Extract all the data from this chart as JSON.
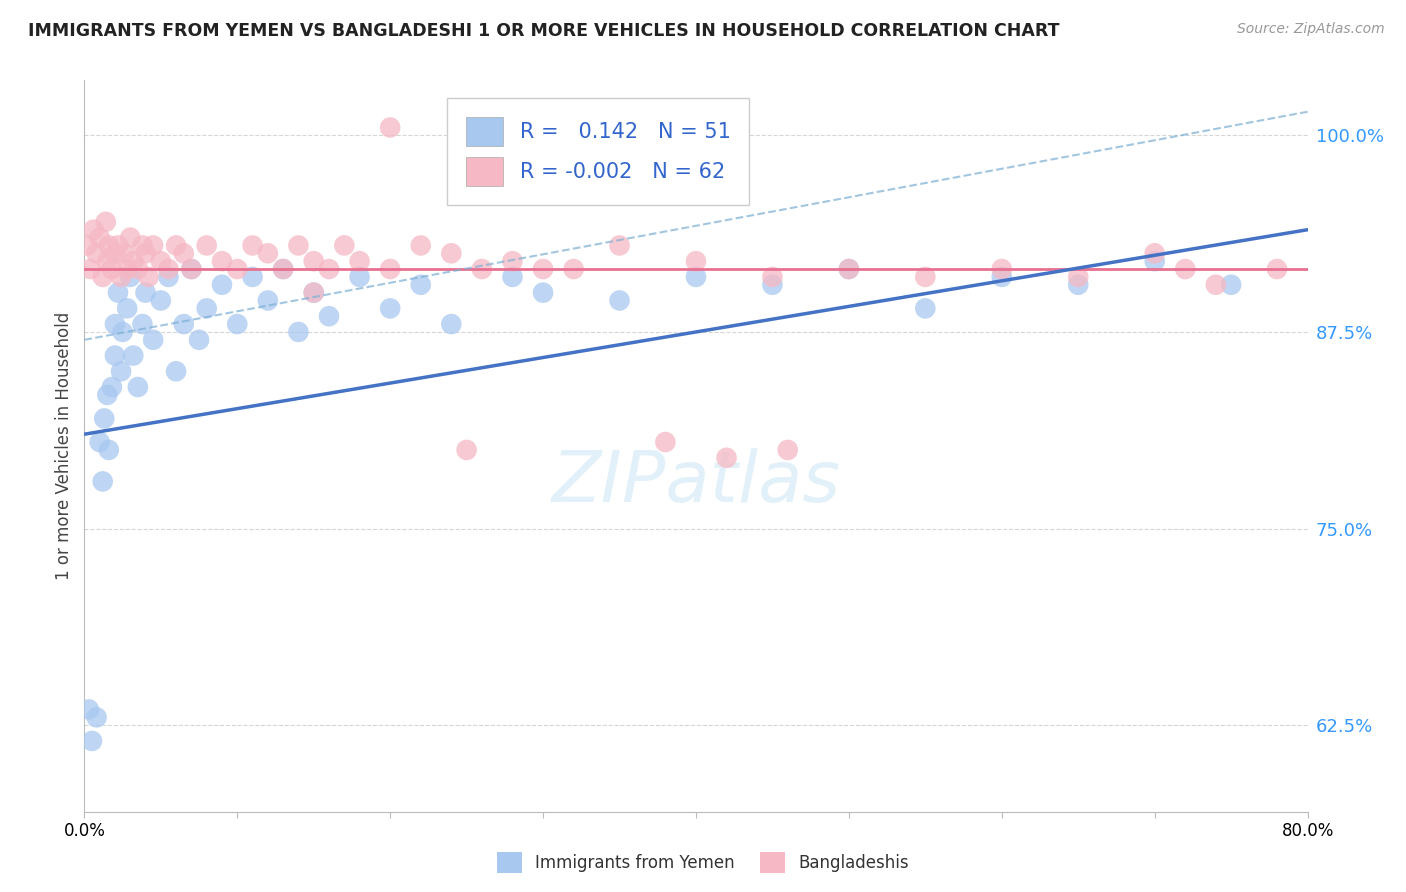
{
  "title": "IMMIGRANTS FROM YEMEN VS BANGLADESHI 1 OR MORE VEHICLES IN HOUSEHOLD CORRELATION CHART",
  "source": "Source: ZipAtlas.com",
  "ylabel": "1 or more Vehicles in Household",
  "legend_labels": [
    "Immigrants from Yemen",
    "Bangladeshis"
  ],
  "r_yemen": 0.142,
  "n_yemen": 51,
  "r_bangladeshi": -0.002,
  "n_bangladeshi": 62,
  "blue_color": "#A8C8F0",
  "pink_color": "#F5B8C4",
  "line_blue_solid": "#4472C4",
  "line_blue_dash": "#7BAFD4",
  "line_pink": "#E87090",
  "yticks": [
    62.5,
    75.0,
    87.5,
    100.0
  ],
  "xmin": 0.0,
  "xmax": 80.0,
  "ymin": 57.0,
  "ymax": 103.5,
  "background_color": "#FFFFFF",
  "grid_color": "#CCCCCC",
  "yemen_x": [
    0.3,
    0.5,
    0.8,
    1.0,
    1.2,
    1.3,
    1.5,
    1.6,
    1.8,
    2.0,
    2.0,
    2.2,
    2.4,
    2.5,
    2.8,
    3.0,
    3.2,
    3.5,
    3.8,
    4.0,
    4.5,
    5.0,
    5.5,
    6.0,
    6.5,
    7.0,
    7.5,
    8.0,
    9.0,
    10.0,
    11.0,
    12.0,
    13.0,
    14.0,
    15.0,
    16.0,
    18.0,
    20.0,
    22.0,
    24.0,
    28.0,
    30.0,
    35.0,
    40.0,
    45.0,
    50.0,
    55.0,
    60.0,
    65.0,
    70.0,
    75.0
  ],
  "yemen_y": [
    63.5,
    61.5,
    63.0,
    80.5,
    78.0,
    82.0,
    83.5,
    80.0,
    84.0,
    86.0,
    88.0,
    90.0,
    85.0,
    87.5,
    89.0,
    91.0,
    86.0,
    84.0,
    88.0,
    90.0,
    87.0,
    89.5,
    91.0,
    85.0,
    88.0,
    91.5,
    87.0,
    89.0,
    90.5,
    88.0,
    91.0,
    89.5,
    91.5,
    87.5,
    90.0,
    88.5,
    91.0,
    89.0,
    90.5,
    88.0,
    91.0,
    90.0,
    89.5,
    91.0,
    90.5,
    91.5,
    89.0,
    91.0,
    90.5,
    92.0,
    90.5
  ],
  "bangladeshi_x": [
    0.2,
    0.4,
    0.6,
    0.8,
    1.0,
    1.2,
    1.4,
    1.5,
    1.6,
    1.8,
    2.0,
    2.2,
    2.4,
    2.6,
    2.8,
    3.0,
    3.2,
    3.5,
    3.8,
    4.0,
    4.2,
    4.5,
    5.0,
    5.5,
    6.0,
    6.5,
    7.0,
    8.0,
    9.0,
    10.0,
    11.0,
    12.0,
    13.0,
    14.0,
    15.0,
    16.0,
    17.0,
    18.0,
    20.0,
    22.0,
    24.0,
    26.0,
    28.0,
    30.0,
    35.0,
    40.0,
    45.0,
    50.0,
    55.0,
    60.0,
    65.0,
    70.0,
    72.0,
    74.0,
    78.0,
    38.0,
    42.0,
    46.0,
    15.0,
    25.0,
    32.0,
    20.0
  ],
  "bangladeshi_y": [
    93.0,
    91.5,
    94.0,
    92.5,
    93.5,
    91.0,
    94.5,
    92.0,
    93.0,
    91.5,
    92.5,
    93.0,
    91.0,
    92.5,
    91.5,
    93.5,
    92.0,
    91.5,
    93.0,
    92.5,
    91.0,
    93.0,
    92.0,
    91.5,
    93.0,
    92.5,
    91.5,
    93.0,
    92.0,
    91.5,
    93.0,
    92.5,
    91.5,
    93.0,
    92.0,
    91.5,
    93.0,
    92.0,
    91.5,
    93.0,
    92.5,
    91.5,
    92.0,
    91.5,
    93.0,
    92.0,
    91.0,
    91.5,
    91.0,
    91.5,
    91.0,
    92.5,
    91.5,
    90.5,
    91.5,
    80.5,
    79.5,
    80.0,
    90.0,
    80.0,
    91.5,
    100.5
  ],
  "yemen_line_x0": 0.0,
  "yemen_line_y0": 81.0,
  "yemen_line_x1": 80.0,
  "yemen_line_y1": 94.0,
  "bang_line_y": 91.5,
  "dash_line_x0": 0.0,
  "dash_line_y0": 87.0,
  "dash_line_x1": 80.0,
  "dash_line_y1": 101.5
}
